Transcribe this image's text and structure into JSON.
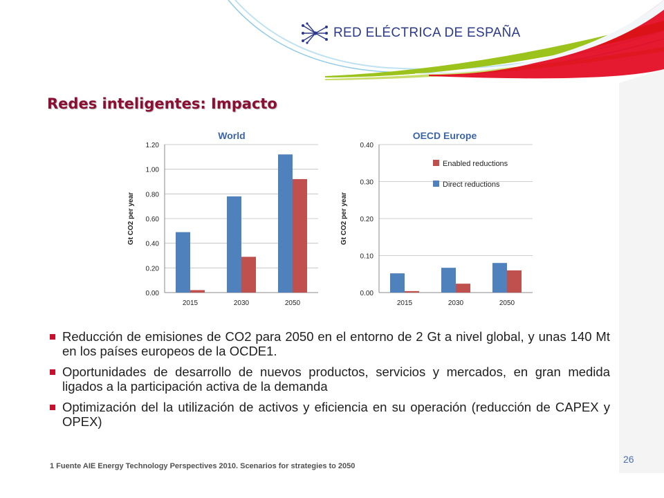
{
  "header": {
    "logo_text": "RED ELÉCTRICA DE ESPAÑA",
    "logo_icon": "network-dots-icon",
    "accent_green": "#9bc31c",
    "accent_red": "#e2001a",
    "accent_blue": "#8fc9e8"
  },
  "slide": {
    "title": "Redes inteligentes: Impacto",
    "title_color": "#8a0f32"
  },
  "chart_data": [
    {
      "type": "bar",
      "title": "World",
      "ylabel": "Gt CO2 per year",
      "categories": [
        "2015",
        "2030",
        "2050"
      ],
      "ylim": [
        0,
        1.2
      ],
      "yticks": [
        "0.00",
        "0.20",
        "0.40",
        "0.60",
        "0.80",
        "1.00",
        "1.20"
      ],
      "series": [
        {
          "values": [
            0.49,
            0.78,
            1.12
          ],
          "color": "#4f81bd"
        },
        {
          "values": [
            0.02,
            0.29,
            0.92
          ],
          "color": "#c0504d"
        }
      ],
      "grid": true
    },
    {
      "type": "bar",
      "title": "OECD Europe",
      "ylabel": "Gt CO2 per year",
      "categories": [
        "2015",
        "2030",
        "2050"
      ],
      "ylim": [
        0,
        0.4
      ],
      "yticks": [
        "0.00",
        "0.10",
        "0.20",
        "0.30",
        "0.40"
      ],
      "series": [
        {
          "name": "Direct reductions",
          "values": [
            0.052,
            0.067,
            0.08
          ],
          "color": "#4f81bd"
        },
        {
          "name": "Enabled reductions",
          "values": [
            0.004,
            0.024,
            0.06
          ],
          "color": "#c0504d"
        }
      ],
      "legend": "top-right",
      "grid": true
    }
  ],
  "bullets": [
    "Reducción de emisiones de CO2 para 2050 en el entorno de 2 Gt a nivel global, y unas 140 Mt en los países europeos de la OCDE1.",
    "Oportunidades de desarrollo de nuevos productos, servicios y mercados, en gran medida ligados a la participación activa de la demanda",
    "Optimización del la utilización de activos y eficiencia en su operación (reducción de CAPEX y OPEX)"
  ],
  "footnote": "1 Fuente AIE Energy Technology Perspectives 2010. Scenarios for strategies to 2050",
  "page_number": "26"
}
